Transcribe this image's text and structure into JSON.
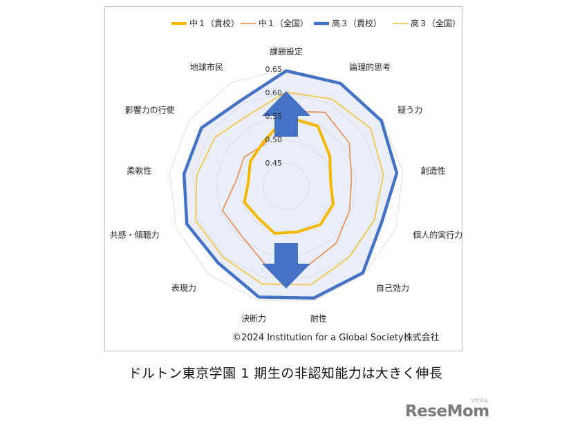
{
  "chart_data": {
    "type": "radar",
    "axes": [
      "課題設定",
      "論理的思考",
      "疑う力",
      "創造性",
      "個人的実行力",
      "自己効力",
      "耐性",
      "決断力",
      "表現力",
      "共感・傾聴力",
      "柔軟性",
      "影響力の行使",
      "地球市民"
    ],
    "radial_ticks": [
      "0.65",
      "0.60",
      "0.55",
      "0.50",
      "0.45"
    ],
    "rlim": [
      0.4,
      0.65
    ],
    "series": [
      {
        "name": "中１（貴校）",
        "color": "#f5b800",
        "values": [
          0.548,
          0.545,
          0.513,
          0.495,
          0.507,
          0.509,
          0.5,
          0.503,
          0.49,
          0.495,
          0.481,
          0.493,
          0.506
        ]
      },
      {
        "name": "中１（全国）",
        "color": "#e8945a",
        "values": [
          0.56,
          0.578,
          0.563,
          0.54,
          0.544,
          0.561,
          0.577,
          0.575,
          0.542,
          0.545,
          0.507,
          0.509,
          0.501
        ]
      },
      {
        "name": "高３（貴校）",
        "color": "#4472c4",
        "values": [
          0.646,
          0.648,
          0.646,
          0.637,
          0.617,
          0.646,
          0.645,
          0.643,
          0.618,
          0.626,
          0.619,
          0.619,
          0.607
        ]
      },
      {
        "name": "高３（全国）",
        "color": "#f0c84a",
        "values": [
          0.601,
          0.61,
          0.618,
          0.608,
          0.601,
          0.602,
          0.616,
          0.614,
          0.602,
          0.606,
          0.592,
          0.584,
          0.572
        ]
      }
    ],
    "legend_position": "top"
  },
  "copyright": "©2024 Institution for a Global Society株式会社",
  "caption": "ドルトン東京学園 1 期生の非認知能力は大きく伸長",
  "watermark": "ReseMom",
  "watermark_small": "リセマム"
}
